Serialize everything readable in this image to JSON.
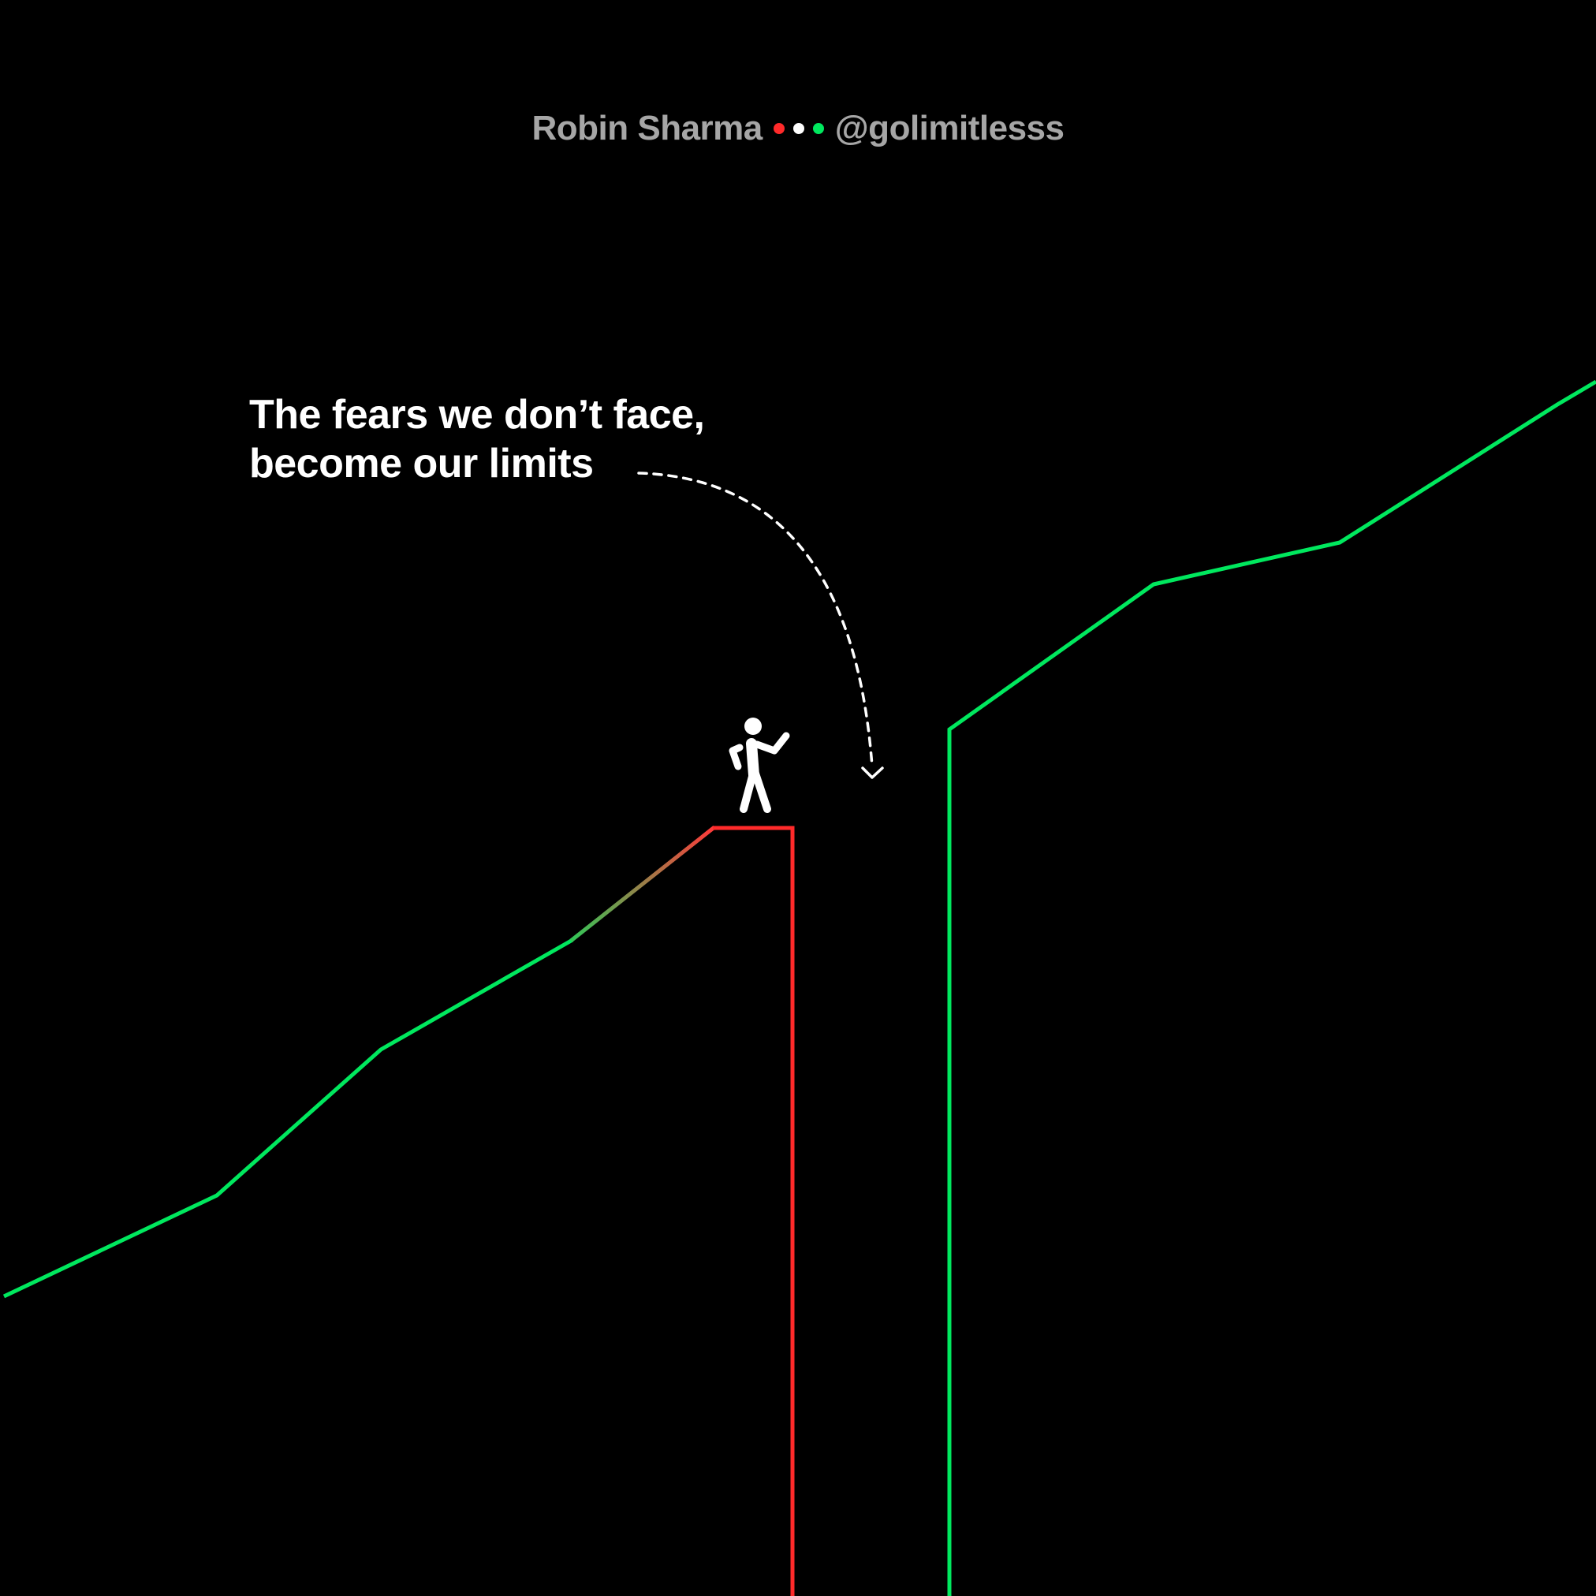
{
  "header": {
    "author": "Robin Sharma",
    "handle": "@golimitlesss",
    "dot_colors": [
      "#ff2a2a",
      "#ffffff",
      "#00e85e"
    ]
  },
  "quote": {
    "line1": "The fears we don’t face,",
    "line2": "become our limits"
  },
  "colors": {
    "background": "#000000",
    "growth": "#00e85e",
    "limit": "#ff2a2a",
    "text": "#ffffff",
    "muted": "#a6a6a6"
  },
  "icons": {
    "figure": "walking-person-icon",
    "arrow": "dashed-curved-arrow-icon"
  }
}
